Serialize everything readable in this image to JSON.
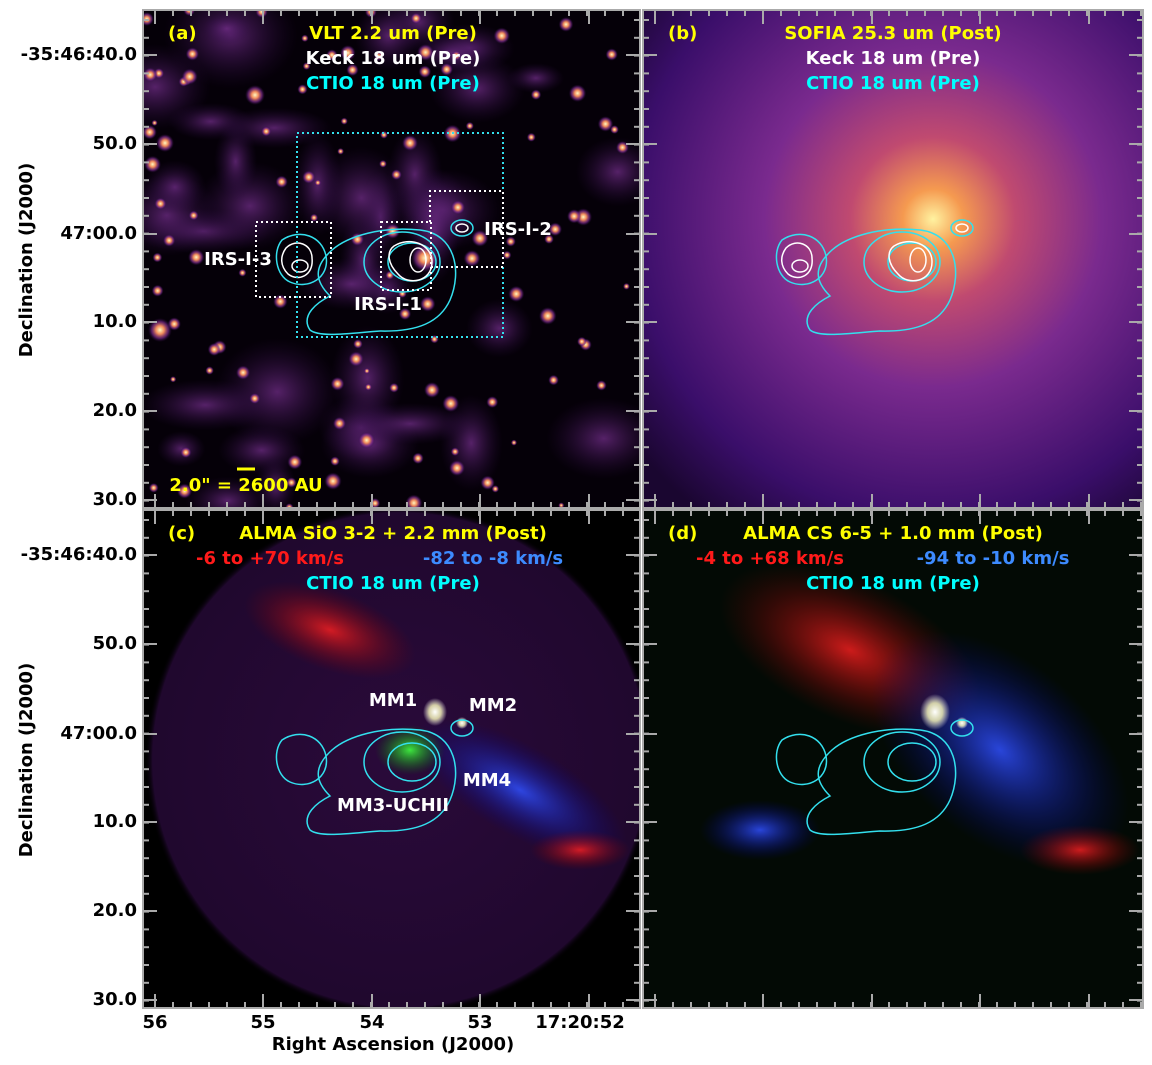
{
  "panels": [
    {
      "letter": "(a)",
      "title_lines": [
        [
          {
            "text": "VLT 2.2 um (Pre)",
            "color": "#ffff00"
          }
        ],
        [
          {
            "text": "Keck 18 um (Pre)",
            "color": "#ffffff"
          }
        ],
        [
          {
            "text": "CTIO 18 um (Pre)",
            "color": "#00ffff"
          }
        ]
      ],
      "annotations": [
        {
          "text": "IRS-I-3",
          "color": "#ffffff"
        },
        {
          "text": "IRS-I-2",
          "color": "#ffffff"
        },
        {
          "text": "IRS-I-1",
          "color": "#ffffff"
        },
        {
          "text": "2.0\" = 2600 AU",
          "color": "#ffff00"
        }
      ]
    },
    {
      "letter": "(b)",
      "title_lines": [
        [
          {
            "text": "SOFIA 25.3 um (Post)",
            "color": "#ffff00"
          }
        ],
        [
          {
            "text": "Keck 18 um (Pre)",
            "color": "#ffffff"
          }
        ],
        [
          {
            "text": "CTIO 18 um (Pre)",
            "color": "#00ffff"
          }
        ]
      ],
      "annotations": []
    },
    {
      "letter": "(c)",
      "title_lines": [
        [
          {
            "text": "ALMA SiO 3-2 + 2.2 mm (Post)",
            "color": "#ffff00"
          }
        ],
        [
          {
            "text": "-6 to +70 km/s",
            "color": "#ff1a1a"
          },
          {
            "text": "-82 to -8 km/s",
            "color": "#3d8bff"
          }
        ],
        [
          {
            "text": "CTIO 18 um (Pre)",
            "color": "#00ffff"
          }
        ]
      ],
      "annotations": [
        {
          "text": "MM1",
          "color": "#ffffff"
        },
        {
          "text": "MM2",
          "color": "#ffffff"
        },
        {
          "text": "MM4",
          "color": "#ffffff"
        },
        {
          "text": "MM3-UCHII",
          "color": "#ffffff"
        }
      ]
    },
    {
      "letter": "(d)",
      "title_lines": [
        [
          {
            "text": "ALMA CS 6-5 + 1.0 mm (Post)",
            "color": "#ffff00"
          }
        ],
        [
          {
            "text": "-4 to +68 km/s",
            "color": "#ff1a1a"
          },
          {
            "text": "-94 to -10 km/s",
            "color": "#3d8bff"
          }
        ],
        [
          {
            "text": "CTIO 18 um (Pre)",
            "color": "#00ffff"
          }
        ]
      ],
      "annotations": []
    }
  ],
  "y_axis": {
    "label": "Declination (J2000)",
    "ticks": [
      "-35:46:40.0",
      "50.0",
      "47:00.0",
      "10.0",
      "20.0",
      "30.0"
    ]
  },
  "x_axis": {
    "label": "Right Ascension (J2000)",
    "ticks": [
      "56",
      "55",
      "54",
      "53",
      "17:20:52"
    ]
  }
}
